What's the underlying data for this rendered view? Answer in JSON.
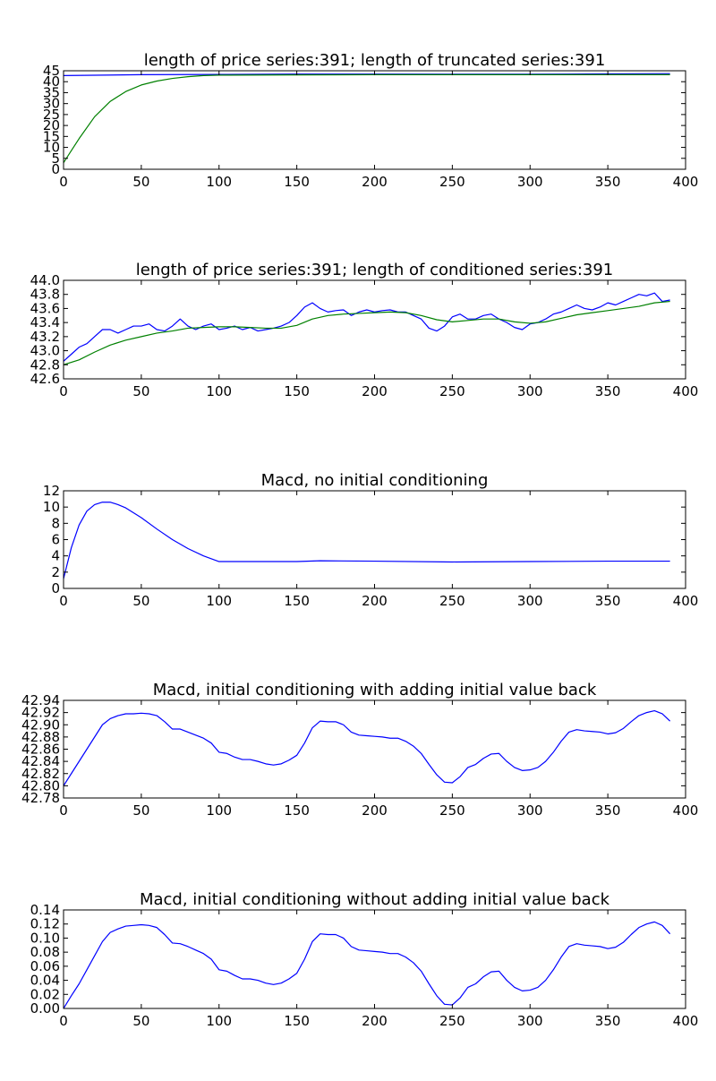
{
  "chart_data": [
    {
      "type": "line",
      "title": "length of price series:391; length of truncated series:391",
      "xlabel": "",
      "ylabel": "",
      "xlim": [
        0,
        400
      ],
      "ylim": [
        0,
        45
      ],
      "xticks": [
        0,
        50,
        100,
        150,
        200,
        250,
        300,
        350,
        400
      ],
      "yticks": [
        0,
        5,
        10,
        15,
        20,
        25,
        30,
        35,
        40,
        45
      ],
      "grid": false,
      "series": [
        {
          "color": "#0000ff",
          "x": [
            0,
            50,
            100,
            150,
            200,
            250,
            300,
            350,
            390
          ],
          "y": [
            42.8,
            43.2,
            43.3,
            43.5,
            43.5,
            43.4,
            43.4,
            43.6,
            43.7
          ]
        },
        {
          "color": "#008000",
          "x": [
            0,
            5,
            10,
            20,
            30,
            40,
            50,
            60,
            70,
            80,
            90,
            100,
            150,
            200,
            250,
            300,
            350,
            390
          ],
          "y": [
            3,
            8.5,
            14,
            24,
            31,
            35.5,
            38.5,
            40.3,
            41.5,
            42.3,
            42.8,
            43.0,
            43.1,
            43.2,
            43.2,
            43.2,
            43.2,
            43.2
          ]
        }
      ]
    },
    {
      "type": "line",
      "title": "length of price series:391; length of conditioned series:391",
      "xlabel": "",
      "ylabel": "",
      "xlim": [
        0,
        400
      ],
      "ylim": [
        42.6,
        44.0
      ],
      "xticks": [
        0,
        50,
        100,
        150,
        200,
        250,
        300,
        350,
        400
      ],
      "yticks": [
        "42.6",
        "42.8",
        "43.0",
        "43.2",
        "43.4",
        "43.6",
        "43.8",
        "44.0"
      ],
      "grid": false,
      "series": [
        {
          "color": "#0000ff",
          "x": [
            0,
            5,
            10,
            15,
            20,
            25,
            30,
            35,
            40,
            45,
            50,
            55,
            60,
            65,
            70,
            75,
            80,
            85,
            90,
            95,
            100,
            105,
            110,
            115,
            120,
            125,
            130,
            135,
            140,
            145,
            150,
            155,
            160,
            165,
            170,
            175,
            180,
            185,
            190,
            195,
            200,
            205,
            210,
            215,
            220,
            225,
            230,
            235,
            240,
            245,
            250,
            255,
            260,
            265,
            270,
            275,
            280,
            285,
            290,
            295,
            300,
            305,
            310,
            315,
            320,
            325,
            330,
            335,
            340,
            345,
            350,
            355,
            360,
            365,
            370,
            375,
            380,
            385,
            390
          ],
          "y": [
            42.85,
            42.95,
            43.05,
            43.1,
            43.2,
            43.3,
            43.3,
            43.25,
            43.3,
            43.35,
            43.35,
            43.38,
            43.3,
            43.28,
            43.35,
            43.45,
            43.35,
            43.3,
            43.35,
            43.38,
            43.3,
            43.32,
            43.35,
            43.3,
            43.33,
            43.28,
            43.3,
            43.32,
            43.35,
            43.4,
            43.5,
            43.62,
            43.68,
            43.6,
            43.55,
            43.57,
            43.58,
            43.5,
            43.55,
            43.58,
            43.55,
            43.57,
            43.58,
            43.55,
            43.55,
            43.5,
            43.45,
            43.32,
            43.28,
            43.35,
            43.48,
            43.52,
            43.45,
            43.45,
            43.5,
            43.52,
            43.45,
            43.4,
            43.33,
            43.3,
            43.38,
            43.4,
            43.45,
            43.52,
            43.55,
            43.6,
            43.65,
            43.6,
            43.58,
            43.62,
            43.68,
            43.65,
            43.7,
            43.75,
            43.8,
            43.78,
            43.82,
            43.7,
            43.72
          ]
        },
        {
          "color": "#008000",
          "x": [
            0,
            10,
            20,
            30,
            40,
            50,
            60,
            70,
            80,
            90,
            100,
            110,
            120,
            130,
            140,
            150,
            160,
            170,
            180,
            190,
            200,
            210,
            220,
            230,
            240,
            250,
            260,
            270,
            280,
            290,
            300,
            310,
            320,
            330,
            340,
            350,
            360,
            370,
            380,
            390
          ],
          "y": [
            42.8,
            42.87,
            42.98,
            43.08,
            43.15,
            43.2,
            43.25,
            43.28,
            43.32,
            43.33,
            43.34,
            43.34,
            43.33,
            43.32,
            43.32,
            43.36,
            43.45,
            43.5,
            43.52,
            43.53,
            43.54,
            43.55,
            43.54,
            43.5,
            43.44,
            43.41,
            43.43,
            43.45,
            43.45,
            43.41,
            43.39,
            43.41,
            43.46,
            43.51,
            43.54,
            43.57,
            43.6,
            43.63,
            43.68,
            43.7
          ]
        }
      ]
    },
    {
      "type": "line",
      "title": "Macd, no initial conditioning",
      "xlabel": "",
      "ylabel": "",
      "xlim": [
        0,
        400
      ],
      "ylim": [
        0,
        12
      ],
      "xticks": [
        0,
        50,
        100,
        150,
        200,
        250,
        300,
        350,
        400
      ],
      "yticks": [
        0,
        2,
        4,
        6,
        8,
        10,
        12
      ],
      "grid": false,
      "series": [
        {
          "color": "#0000ff",
          "x": [
            0,
            5,
            10,
            15,
            20,
            25,
            30,
            35,
            40,
            50,
            60,
            70,
            80,
            90,
            100,
            110,
            150,
            165,
            200,
            250,
            300,
            350,
            390
          ],
          "y": [
            1.2,
            5.0,
            7.8,
            9.5,
            10.3,
            10.6,
            10.6,
            10.3,
            9.9,
            8.7,
            7.3,
            6.0,
            4.9,
            4.0,
            3.3,
            3.3,
            3.3,
            3.4,
            3.35,
            3.25,
            3.3,
            3.35,
            3.35
          ]
        }
      ]
    },
    {
      "type": "line",
      "title": "Macd, initial conditioning with adding initial value back",
      "xlabel": "",
      "ylabel": "",
      "xlim": [
        0,
        400
      ],
      "ylim": [
        42.78,
        42.94
      ],
      "xticks": [
        0,
        50,
        100,
        150,
        200,
        250,
        300,
        350,
        400
      ],
      "yticks": [
        "42.78",
        "42.80",
        "42.82",
        "42.84",
        "42.86",
        "42.88",
        "42.90",
        "42.92",
        "42.94"
      ],
      "grid": false,
      "series": [
        {
          "color": "#0000ff",
          "x": [
            0,
            5,
            10,
            15,
            20,
            25,
            30,
            35,
            40,
            45,
            50,
            55,
            60,
            65,
            70,
            75,
            80,
            85,
            90,
            95,
            100,
            105,
            110,
            115,
            120,
            125,
            130,
            135,
            140,
            145,
            150,
            155,
            160,
            165,
            170,
            175,
            180,
            185,
            190,
            195,
            200,
            205,
            210,
            215,
            220,
            225,
            230,
            235,
            240,
            245,
            250,
            255,
            260,
            265,
            270,
            275,
            280,
            285,
            290,
            295,
            300,
            305,
            310,
            315,
            320,
            325,
            330,
            335,
            340,
            345,
            350,
            355,
            360,
            365,
            370,
            375,
            380,
            385,
            390
          ],
          "y": [
            42.8,
            42.82,
            42.84,
            42.86,
            42.88,
            42.9,
            42.91,
            42.915,
            42.918,
            42.918,
            42.919,
            42.918,
            42.915,
            42.905,
            42.893,
            42.893,
            42.888,
            42.883,
            42.878,
            42.87,
            42.855,
            42.853,
            42.847,
            42.843,
            42.843,
            42.84,
            42.836,
            42.834,
            42.836,
            42.842,
            42.85,
            42.87,
            42.895,
            42.906,
            42.905,
            42.905,
            42.9,
            42.888,
            42.883,
            42.882,
            42.881,
            42.88,
            42.878,
            42.878,
            42.873,
            42.865,
            42.853,
            42.835,
            42.818,
            42.806,
            42.805,
            42.815,
            42.83,
            42.835,
            42.845,
            42.852,
            42.853,
            42.84,
            42.83,
            42.825,
            42.826,
            42.83,
            42.84,
            42.855,
            42.873,
            42.888,
            42.892,
            42.89,
            42.889,
            42.888,
            42.885,
            42.887,
            42.894,
            42.905,
            42.915,
            42.92,
            42.923,
            42.918,
            42.906
          ]
        }
      ]
    },
    {
      "type": "line",
      "title": "Macd, initial conditioning without adding initial value back",
      "xlabel": "",
      "ylabel": "",
      "xlim": [
        0,
        400
      ],
      "ylim": [
        0,
        0.14
      ],
      "xticks": [
        0,
        50,
        100,
        150,
        200,
        250,
        300,
        350,
        400
      ],
      "yticks": [
        "0.00",
        "0.02",
        "0.04",
        "0.06",
        "0.08",
        "0.10",
        "0.12",
        "0.14"
      ],
      "grid": false,
      "series": [
        {
          "color": "#0000ff",
          "x": [
            0,
            5,
            10,
            15,
            20,
            25,
            30,
            35,
            40,
            45,
            50,
            55,
            60,
            65,
            70,
            75,
            80,
            85,
            90,
            95,
            100,
            105,
            110,
            115,
            120,
            125,
            130,
            135,
            140,
            145,
            150,
            155,
            160,
            165,
            170,
            175,
            180,
            185,
            190,
            195,
            200,
            205,
            210,
            215,
            220,
            225,
            230,
            235,
            240,
            245,
            250,
            255,
            260,
            265,
            270,
            275,
            280,
            285,
            290,
            295,
            300,
            305,
            310,
            315,
            320,
            325,
            330,
            335,
            340,
            345,
            350,
            355,
            360,
            365,
            370,
            375,
            380,
            385,
            390
          ],
          "y": [
            0.0,
            0.018,
            0.035,
            0.055,
            0.075,
            0.095,
            0.108,
            0.113,
            0.117,
            0.118,
            0.119,
            0.118,
            0.115,
            0.105,
            0.093,
            0.092,
            0.088,
            0.083,
            0.078,
            0.07,
            0.055,
            0.053,
            0.047,
            0.042,
            0.042,
            0.04,
            0.036,
            0.034,
            0.036,
            0.042,
            0.05,
            0.07,
            0.095,
            0.106,
            0.105,
            0.105,
            0.1,
            0.088,
            0.083,
            0.082,
            0.081,
            0.08,
            0.078,
            0.078,
            0.073,
            0.065,
            0.053,
            0.035,
            0.018,
            0.006,
            0.005,
            0.015,
            0.03,
            0.035,
            0.045,
            0.052,
            0.053,
            0.04,
            0.03,
            0.025,
            0.026,
            0.03,
            0.04,
            0.055,
            0.073,
            0.088,
            0.092,
            0.09,
            0.089,
            0.088,
            0.085,
            0.087,
            0.094,
            0.105,
            0.115,
            0.12,
            0.123,
            0.118,
            0.106
          ]
        }
      ]
    }
  ]
}
